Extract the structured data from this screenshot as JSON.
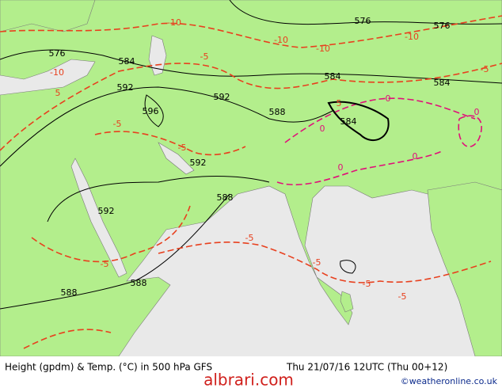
{
  "map": {
    "contour_labels": [
      "576",
      "576",
      "576",
      "-10",
      "-10",
      "-10",
      "-10",
      "-10",
      "584",
      "584",
      "584",
      "584",
      "-5",
      "-5",
      "5",
      "592",
      "592",
      "592",
      "592",
      "588",
      "588",
      "588",
      "588",
      "596",
      "-5",
      "-5",
      "-5",
      "-5",
      "-5",
      "-5",
      "-5",
      "0",
      "0",
      "0",
      "0",
      "0",
      "5"
    ],
    "footer": {
      "title": "Height (gpdm) & Temp. (°C) in 500 hPa GFS",
      "time": "Thu 21/07/16 12UTC (Thu 00+12)",
      "credit": "©weatheronline.co.uk",
      "watermark": "albrari.com"
    }
  }
}
